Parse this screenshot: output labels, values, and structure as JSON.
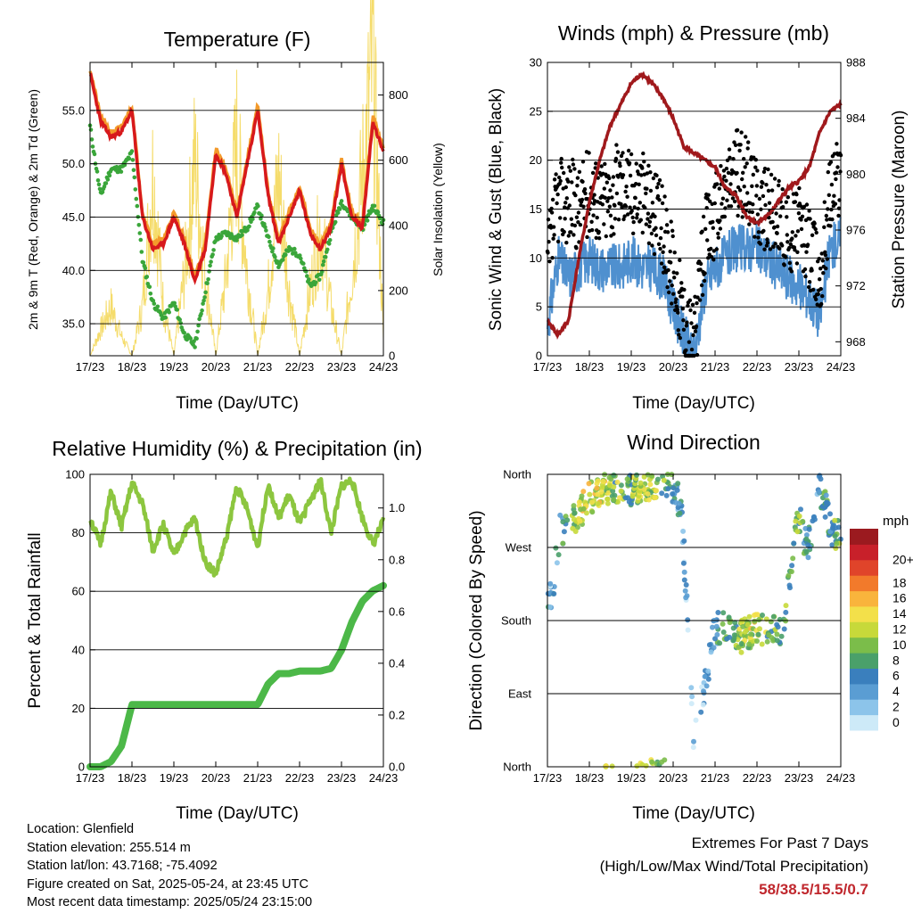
{
  "colors": {
    "temp_2m": "#d7191c",
    "temp_9m": "#f39a2b",
    "dewpoint": "#3aa63a",
    "solar": "#f5dc6b",
    "wind": "#4f90cf",
    "gust": "#000000",
    "pressure": "#a0191c",
    "rh": "#8cc63f",
    "precip": "#4cb848",
    "extremes": "#c0272d",
    "speed_scale": [
      "#cdeaf8",
      "#8cc4ea",
      "#5a9dd3",
      "#3a7fbd",
      "#4aa06a",
      "#7bbd4a",
      "#c7d93a",
      "#f3e04a",
      "#f9b43c",
      "#f27a2b",
      "#e0442a",
      "#c8202a",
      "#9b1a1f"
    ]
  },
  "x_ticks": [
    "17/23",
    "18/23",
    "19/23",
    "20/23",
    "21/23",
    "22/23",
    "23/23",
    "24/23"
  ],
  "xlabel": "Time (Day/UTC)",
  "charts": {
    "temperature": {
      "title": "Temperature (F)",
      "ylabel_left": "2m & 9m T (Red, Orange) & 2m Td (Green)",
      "ylabel_right": "Solar Insolation (Yellow)",
      "left_ticks": [
        "35.0",
        "40.0",
        "45.0",
        "50.0",
        "55.0"
      ],
      "right_ticks": [
        "0",
        "200",
        "400",
        "600",
        "800"
      ]
    },
    "winds": {
      "title": "Winds (mph) & Pressure (mb)",
      "ylabel_left": "Sonic Wind & Gust (Blue, Black)",
      "ylabel_right": "Station Pressure (Maroon)",
      "left_ticks": [
        "0",
        "5",
        "10",
        "15",
        "20",
        "25",
        "30"
      ],
      "right_ticks": [
        "968",
        "972",
        "976",
        "980",
        "984",
        "988"
      ]
    },
    "humidity": {
      "title": "Relative Humidity (%) & Precipitation (in)",
      "ylabel_left": "Percent & Total Rainfall",
      "left_ticks": [
        "0",
        "20",
        "40",
        "60",
        "80",
        "100"
      ],
      "right_ticks": [
        "0.0",
        "0.2",
        "0.4",
        "0.6",
        "0.8",
        "1.0"
      ]
    },
    "direction": {
      "title": "Wind Direction",
      "ylabel_left": "Direction (Colored By Speed)",
      "left_ticks": [
        "North",
        "East",
        "South",
        "West",
        "North"
      ],
      "legend_title": "mph",
      "legend_labels": [
        "0",
        "2",
        "4",
        "6",
        "8",
        "10",
        "12",
        "14",
        "16",
        "18",
        "20+"
      ]
    }
  },
  "info": {
    "location": "Location: Glenfield",
    "elevation": "Station elevation: 255.514 m",
    "latlon": "Station lat/lon: 43.7168; -75.4092",
    "created": "Figure created on Sat, 2025-05-24, at 23:45 UTC",
    "recent": "Most recent data timestamp: 2025/05/24 23:15:00"
  },
  "extremes": {
    "line1": "Extremes For Past 7 Days",
    "line2": "(High/Low/Max Wind/Total Precipitation)",
    "values": "58/38.5/15.5/0.7"
  },
  "chart_data": [
    {
      "type": "line",
      "title": "Temperature (F)",
      "x": [
        17,
        17.25,
        17.5,
        17.75,
        18,
        18.25,
        18.5,
        18.75,
        19,
        19.25,
        19.5,
        19.75,
        20,
        20.25,
        20.5,
        20.75,
        21,
        21.25,
        21.5,
        21.75,
        22,
        22.25,
        22.5,
        22.75,
        23,
        23.25,
        23.5,
        23.75,
        24
      ],
      "series": [
        {
          "name": "2m T",
          "values": [
            58.5,
            54,
            52.5,
            53,
            55,
            45,
            42,
            42.5,
            45,
            42.5,
            39,
            42,
            51,
            49,
            45,
            50,
            55,
            47,
            42.5,
            45,
            47.5,
            43.5,
            42,
            44,
            50,
            45,
            44,
            54,
            51
          ]
        },
        {
          "name": "2m Td",
          "values": [
            53.5,
            47,
            49.5,
            49.5,
            51,
            41,
            37,
            35.5,
            37,
            34,
            33,
            38,
            43,
            43.5,
            43,
            44,
            46,
            43,
            40.5,
            42,
            41.5,
            38.5,
            39.5,
            43.5,
            46.5,
            45,
            44,
            46,
            44.5
          ]
        },
        {
          "name": "Solar Insolation",
          "values": [
            0,
            80,
            150,
            60,
            0,
            150,
            560,
            150,
            0,
            250,
            600,
            250,
            0,
            250,
            650,
            250,
            0,
            200,
            550,
            200,
            0,
            200,
            400,
            150,
            0,
            250,
            550,
            900,
            50
          ]
        }
      ],
      "ylim": [
        32,
        59.5
      ],
      "ylim_right": [
        0,
        900
      ]
    },
    {
      "type": "line",
      "title": "Winds (mph) & Pressure (mb)",
      "x": [
        17,
        17.25,
        17.5,
        17.75,
        18,
        18.25,
        18.5,
        18.75,
        19,
        19.25,
        19.5,
        19.75,
        20,
        20.25,
        20.5,
        20.75,
        21,
        21.25,
        21.5,
        21.75,
        22,
        22.25,
        22.5,
        22.75,
        23,
        23.25,
        23.5,
        23.75,
        24
      ],
      "series": [
        {
          "name": "Sonic Wind",
          "values": [
            3,
            10,
            8,
            9,
            10,
            9,
            9,
            9,
            10,
            9,
            9,
            8,
            5,
            2,
            0,
            7,
            9,
            10,
            11,
            11,
            11,
            10,
            9,
            8,
            7,
            6,
            4,
            11,
            12
          ]
        },
        {
          "name": "Gust",
          "values": [
            9,
            16,
            16,
            15,
            17,
            16,
            16,
            18,
            17,
            17,
            15,
            13,
            9,
            4,
            1,
            12,
            14,
            17,
            19,
            18,
            16,
            15,
            14,
            13,
            13,
            11,
            8,
            17,
            19
          ]
        },
        {
          "name": "Station Pressure",
          "values": [
            969.5,
            968.5,
            969.5,
            974,
            978,
            981,
            983.5,
            985,
            986.5,
            987.2,
            986.5,
            985.5,
            984,
            982,
            981.5,
            981,
            980.5,
            979,
            978.5,
            977,
            976.5,
            977,
            978,
            979,
            979.5,
            980.5,
            983,
            984.5,
            985
          ]
        }
      ],
      "ylim": [
        0,
        30
      ],
      "ylim_right": [
        967,
        988
      ]
    },
    {
      "type": "line",
      "title": "Relative Humidity (%) & Precipitation (in)",
      "x": [
        17,
        17.25,
        17.5,
        17.75,
        18,
        18.25,
        18.5,
        18.75,
        19,
        19.25,
        19.5,
        19.75,
        20,
        20.25,
        20.5,
        20.75,
        21,
        21.25,
        21.5,
        21.75,
        22,
        22.25,
        22.5,
        22.75,
        23,
        23.25,
        23.5,
        23.75,
        24
      ],
      "series": [
        {
          "name": "Relative Humidity",
          "values": [
            85,
            76,
            94,
            82,
            97,
            90,
            74,
            83,
            72,
            80,
            85,
            70,
            66,
            78,
            96,
            88,
            75,
            97,
            85,
            93,
            83,
            91,
            98,
            80,
            96,
            98,
            85,
            76,
            84
          ]
        },
        {
          "name": "Total Precipitation",
          "values": [
            0,
            0,
            0.02,
            0.08,
            0.24,
            0.24,
            0.24,
            0.24,
            0.24,
            0.24,
            0.24,
            0.24,
            0.24,
            0.24,
            0.24,
            0.24,
            0.24,
            0.32,
            0.36,
            0.36,
            0.37,
            0.37,
            0.37,
            0.38,
            0.45,
            0.56,
            0.64,
            0.68,
            0.7
          ]
        }
      ],
      "ylim": [
        0,
        100
      ],
      "ylim_right": [
        0,
        1.13
      ]
    },
    {
      "type": "scatter",
      "title": "Wind Direction",
      "x": [
        17.1,
        17.3,
        17.6,
        18,
        18.5,
        19,
        19.5,
        19.9,
        20.2,
        20.5,
        21,
        21.3,
        21.6,
        22,
        22.3,
        22.6,
        23,
        23.2,
        23.5,
        23.8
      ],
      "y": [
        210,
        290,
        300,
        330,
        345,
        340,
        350,
        350,
        320,
        30,
        170,
        175,
        160,
        170,
        165,
        170,
        310,
        265,
        345,
        285
      ],
      "ylim": [
        0,
        360
      ],
      "speed": [
        3,
        4,
        9,
        11,
        9,
        8,
        10,
        7,
        4,
        1,
        5,
        7,
        9,
        10,
        8,
        6,
        8,
        5,
        4,
        7
      ]
    }
  ]
}
